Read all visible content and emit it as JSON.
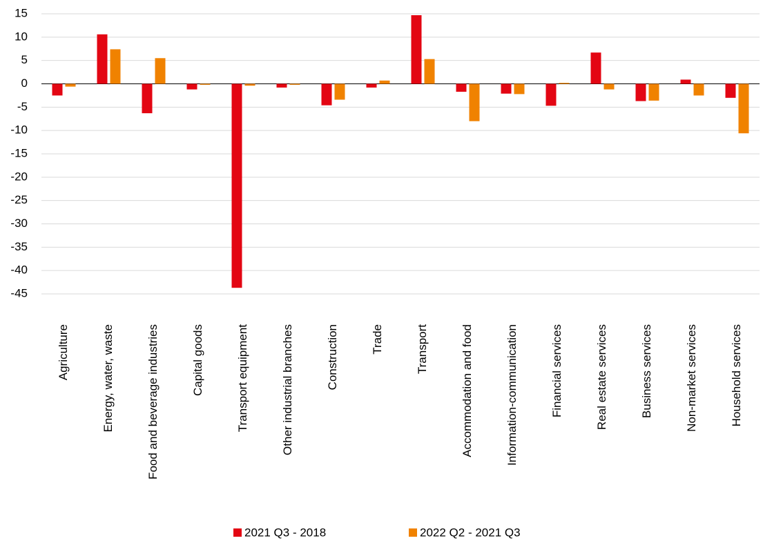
{
  "chart_data": {
    "type": "bar",
    "categories": [
      "Agriculture",
      "Energy, water, waste",
      "Food and beverage industries",
      "Capital goods",
      "Transport equipment",
      "Other industrial branches",
      "Construction",
      "Trade",
      "Transport",
      "Accommodation and food",
      "Information-communication",
      "Financial services",
      "Real estate services",
      "Business services",
      "Non-market services",
      "Household services"
    ],
    "series": [
      {
        "name": "2021 Q3 - 2018",
        "color": "#e30613",
        "values": [
          -2.5,
          10.6,
          -6.3,
          -1.2,
          -43.7,
          -0.8,
          -4.6,
          -0.8,
          14.7,
          -1.7,
          -2.1,
          -4.7,
          6.7,
          -3.7,
          0.9,
          -3.0
        ]
      },
      {
        "name": "2022 Q2 - 2021 Q3",
        "color": "#f08200",
        "values": [
          -0.6,
          7.4,
          5.5,
          -0.2,
          -0.4,
          -0.2,
          -3.4,
          0.7,
          5.3,
          -8.0,
          -2.2,
          0.2,
          -1.2,
          -3.6,
          -2.5,
          -10.6
        ]
      }
    ],
    "ylim": [
      -45,
      15
    ],
    "yticks": [
      -45,
      -40,
      -35,
      -30,
      -25,
      -20,
      -15,
      -10,
      -5,
      0,
      5,
      10,
      15
    ],
    "grid": true
  }
}
